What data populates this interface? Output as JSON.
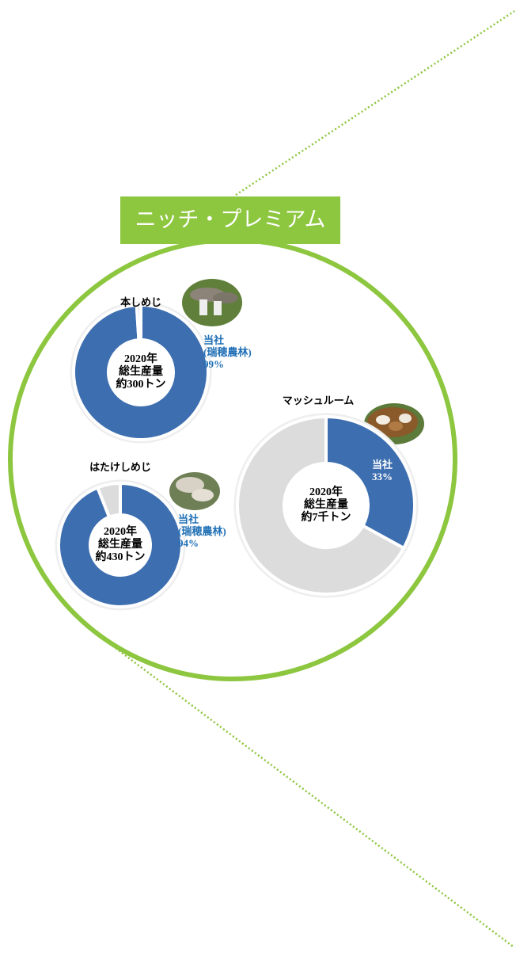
{
  "banner": "ニッチ・プレミアム",
  "chart_data": [
    {
      "type": "donut",
      "title": "本しめじ",
      "center_label": "2020年\n総生産量\n約300トン",
      "categories": [
        "当社\n(瑞穂農林)",
        null
      ],
      "values": [
        99,
        1
      ],
      "value_labels": [
        "99%",
        null
      ],
      "colors": [
        "#3d6eaf",
        "#dcdcdc"
      ]
    },
    {
      "type": "donut",
      "title": "はたけしめじ",
      "center_label": "2020年\n総生産量\n約430トン",
      "categories": [
        "当社\n(瑞穂農林)",
        null
      ],
      "values": [
        94,
        6
      ],
      "value_labels": [
        "94%",
        null
      ],
      "colors": [
        "#3d6eaf",
        "#dcdcdc"
      ]
    },
    {
      "type": "donut",
      "title": "マッシュルーム",
      "center_label": "2020年\n総生産量\n約7千トン",
      "categories": [
        "当社",
        null
      ],
      "values": [
        33,
        67
      ],
      "value_labels": [
        "33%",
        null
      ],
      "colors": [
        "#3d6eaf",
        "#dcdcdc"
      ]
    }
  ]
}
